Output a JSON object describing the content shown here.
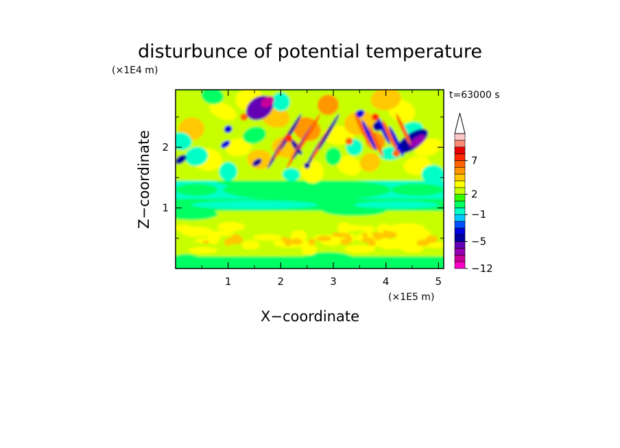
{
  "chart_data": {
    "type": "heatmap",
    "title": "disturbunce of potential temperature",
    "xlabel": "X−coordinate",
    "ylabel": "Z−coordinate",
    "x_unit": "(×1E5 m)",
    "y_unit": "(×1E4 m)",
    "time_label": "t=63000 s",
    "xlim": [
      0,
      5.1
    ],
    "ylim": [
      0,
      2.95
    ],
    "x_ticks": [
      1,
      2,
      3,
      4,
      5
    ],
    "x_tick_labels": [
      "1",
      "2",
      "3",
      "4",
      "5"
    ],
    "y_ticks": [
      1,
      2
    ],
    "y_tick_labels": [
      "1",
      "2"
    ],
    "grid": false,
    "colorbar": {
      "levels": [
        -12,
        -10,
        -8,
        -6,
        -5,
        -4,
        -3,
        -2,
        -1,
        0,
        1,
        2,
        3,
        4,
        5,
        6,
        7,
        8,
        9,
        10
      ],
      "level_labels": [
        "−12",
        "−5",
        "−1",
        "2",
        "7"
      ],
      "label_levels": [
        -12,
        -5,
        -1,
        2,
        7
      ],
      "colors": [
        "#ff00c8",
        "#c8009a",
        "#9600b4",
        "#6400b4",
        "#0000a0",
        "#0000dc",
        "#0050ff",
        "#00c8ff",
        "#00ffc8",
        "#00ff64",
        "#32ff00",
        "#c8ff00",
        "#ffff00",
        "#ffc800",
        "#ff9600",
        "#ff6400",
        "#ff2800",
        "#e60000",
        "#ff8c78",
        "#ffc8c8"
      ],
      "extend_top": true
    }
  }
}
